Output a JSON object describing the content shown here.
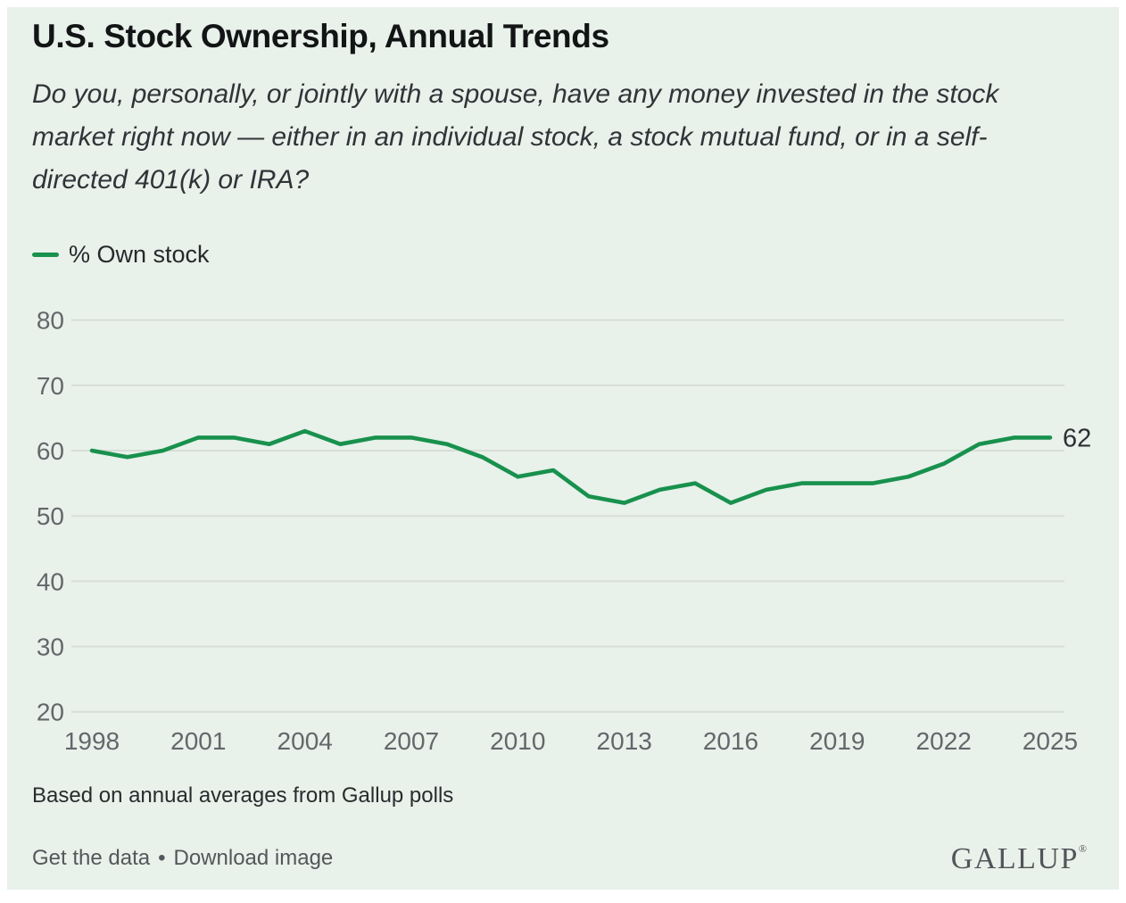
{
  "colors": {
    "card_background": "#e8f1ea",
    "page_background": "#ffffff",
    "line_green": "#18914d",
    "gridline": "#d7ddd7",
    "tick_text": "#63676a",
    "end_label_text": "#2c3033"
  },
  "header": {
    "title": "U.S. Stock Ownership, Annual Trends",
    "question_lines": [
      "Do you, personally, or jointly with a spouse, have any money invested in the stock",
      "market right now — either in an individual stock, a stock mutual fund, or in a self-",
      "directed 401(k) or IRA?"
    ]
  },
  "legend": {
    "label": "% Own stock"
  },
  "chart_data": {
    "type": "line",
    "title": "U.S. Stock Ownership, Annual Trends",
    "xlabel": "",
    "ylabel": "",
    "xlim": [
      1998,
      2025
    ],
    "ylim": [
      20,
      80
    ],
    "yticks": [
      80,
      70,
      60,
      50,
      40,
      30,
      20
    ],
    "xticks": [
      1998,
      2001,
      2004,
      2007,
      2010,
      2013,
      2016,
      2019,
      2022,
      2025
    ],
    "grid": "horizontal",
    "legend_position": "top-left",
    "x": [
      1998,
      1999,
      2000,
      2001,
      2002,
      2003,
      2004,
      2005,
      2006,
      2007,
      2008,
      2009,
      2010,
      2011,
      2012,
      2013,
      2014,
      2015,
      2016,
      2017,
      2018,
      2019,
      2020,
      2021,
      2022,
      2023,
      2024,
      2025
    ],
    "series": [
      {
        "name": "% Own stock",
        "color": "#18914d",
        "values": [
          60,
          59,
          60,
          62,
          62,
          61,
          63,
          61,
          62,
          62,
          61,
          59,
          56,
          57,
          53,
          52,
          54,
          55,
          52,
          54,
          55,
          55,
          55,
          56,
          58,
          61,
          62,
          62
        ]
      }
    ],
    "end_label": "62"
  },
  "footnote": "Based on annual averages from Gallup polls",
  "footer": {
    "get_data_label": "Get the data",
    "separator": "•",
    "download_label": "Download image",
    "logo_text": "GALLUP",
    "logo_registered": "®"
  }
}
